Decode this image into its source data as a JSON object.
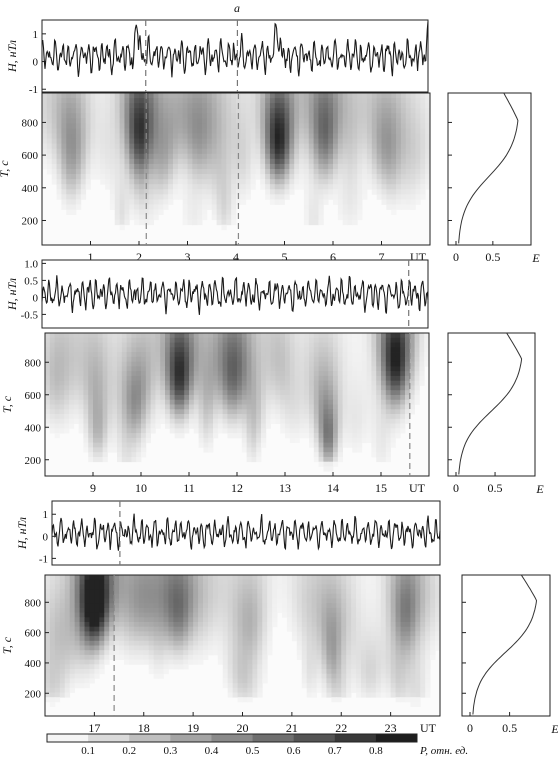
{
  "figure_label": "a",
  "units": {
    "h_axis": "H, нТл",
    "t_axis": "T, c",
    "time_axis": "UT",
    "energy_axis": "E",
    "colorbar_label": "P, отн. ед."
  },
  "colorbar": {
    "ticks": [
      "0.1",
      "0.2",
      "0.3",
      "0.4",
      "0.5",
      "0.6",
      "0.7",
      "0.8"
    ]
  },
  "chart_data": [
    {
      "type": "line",
      "panel": "1",
      "x_range": [
        0,
        8
      ],
      "ylim": [
        -1.1,
        1.5
      ],
      "yticks": [
        "1",
        "0",
        "-1"
      ],
      "ylabel": "H, нТл",
      "peaks": [
        {
          "x": 1.98,
          "y": 1.3
        },
        {
          "x": 4.87,
          "y": 1.45
        },
        {
          "x": 8.0,
          "y": 1.0
        }
      ],
      "dashed_x": [
        2.15,
        4.05
      ]
    },
    {
      "type": "heatmap",
      "panel": "1",
      "x_range": [
        0,
        8
      ],
      "ylim": [
        50,
        980
      ],
      "xticks": [
        "1",
        "2",
        "3",
        "4",
        "5",
        "6",
        "7"
      ],
      "xtick_values": [
        1,
        2,
        3,
        4,
        5,
        6,
        7
      ],
      "yticks": [
        "800",
        "600",
        "400",
        "200"
      ],
      "ytick_values": [
        800,
        600,
        400,
        200
      ],
      "xlabel": "UT",
      "ylabel": "T, c",
      "dashed_x": [
        2.15,
        4.05
      ],
      "hotspots": [
        {
          "x": 2.0,
          "y": 800,
          "p": 0.75
        },
        {
          "x": 4.87,
          "y": 710,
          "p": 0.95
        },
        {
          "x": 0.6,
          "y": 560,
          "p": 0.3
        },
        {
          "x": 5.85,
          "y": 780,
          "p": 0.45
        },
        {
          "x": 3.2,
          "y": 720,
          "p": 0.25
        },
        {
          "x": 7.0,
          "y": 680,
          "p": 0.25
        }
      ]
    },
    {
      "type": "line",
      "panel": "1",
      "x_range": [
        0,
        1
      ],
      "ylim": [
        0,
        1
      ],
      "xticks": [
        "0",
        "0.5",
        "E"
      ],
      "xlabel": "E",
      "ylim_periods": [
        50,
        980
      ]
    },
    {
      "type": "line",
      "panel": "2",
      "x_range": [
        8,
        16
      ],
      "ylim": [
        -0.9,
        1.1
      ],
      "yticks": [
        "1.0",
        "0.5",
        "0",
        "-0.5"
      ],
      "ylabel": "H, нТл",
      "dashed_x": [
        15.6
      ]
    },
    {
      "type": "heatmap",
      "panel": "2",
      "x_range": [
        8,
        16
      ],
      "ylim": [
        100,
        980
      ],
      "xticks": [
        "9",
        "10",
        "11",
        "12",
        "13",
        "14",
        "15"
      ],
      "xtick_values": [
        9,
        10,
        11,
        12,
        13,
        14,
        15
      ],
      "yticks": [
        "800",
        "600",
        "400",
        "200"
      ],
      "ytick_values": [
        800,
        600,
        400,
        200
      ],
      "xlabel": "UT",
      "ylabel": "T, c",
      "dashed_x": [
        15.6
      ],
      "hotspots": [
        {
          "x": 10.8,
          "y": 740,
          "p": 0.95
        },
        {
          "x": 15.3,
          "y": 840,
          "p": 0.9
        },
        {
          "x": 11.9,
          "y": 700,
          "p": 0.5
        },
        {
          "x": 9.1,
          "y": 420,
          "p": 0.35
        },
        {
          "x": 13.9,
          "y": 380,
          "p": 0.35
        },
        {
          "x": 9.9,
          "y": 600,
          "p": 0.3
        }
      ]
    },
    {
      "type": "line",
      "panel": "2",
      "x_range": [
        0,
        1
      ],
      "ylim": [
        0,
        1
      ],
      "xticks": [
        "0",
        "0.5",
        "E"
      ],
      "xlabel": "E"
    },
    {
      "type": "line",
      "panel": "3",
      "x_range": [
        16,
        24
      ],
      "ylim": [
        -1.3,
        1.6
      ],
      "yticks": [
        "1",
        "0",
        "-1"
      ],
      "ylabel": "H, нТл",
      "dashed_x": [
        17.4
      ]
    },
    {
      "type": "heatmap",
      "panel": "3",
      "x_range": [
        16,
        24
      ],
      "ylim": [
        50,
        980
      ],
      "xticks": [
        "17",
        "18",
        "19",
        "20",
        "21",
        "22",
        "23"
      ],
      "xtick_values": [
        17,
        18,
        19,
        20,
        21,
        22,
        23
      ],
      "yticks": [
        "800",
        "600",
        "400",
        "200"
      ],
      "ytick_values": [
        800,
        600,
        400,
        200
      ],
      "xlabel": "UT",
      "ylabel": "T, c",
      "dashed_x": [
        17.4
      ],
      "hotspots": [
        {
          "x": 17.0,
          "y": 820,
          "p": 0.98
        },
        {
          "x": 18.7,
          "y": 760,
          "p": 0.55
        },
        {
          "x": 23.3,
          "y": 790,
          "p": 0.5
        },
        {
          "x": 20.2,
          "y": 700,
          "p": 0.2
        },
        {
          "x": 21.8,
          "y": 720,
          "p": 0.2
        }
      ]
    },
    {
      "type": "line",
      "panel": "3",
      "x_range": [
        0,
        1
      ],
      "ylim": [
        0,
        1
      ],
      "xticks": [
        "0",
        "0.5",
        "E"
      ],
      "xlabel": "E"
    }
  ]
}
